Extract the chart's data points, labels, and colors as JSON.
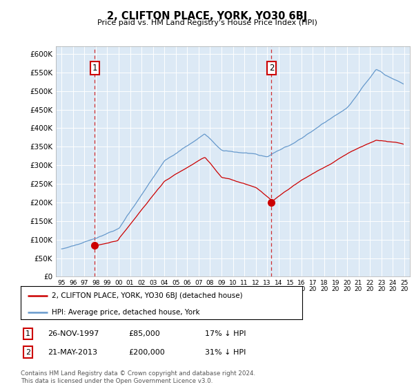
{
  "title": "2, CLIFTON PLACE, YORK, YO30 6BJ",
  "subtitle": "Price paid vs. HM Land Registry's House Price Index (HPI)",
  "ylim": [
    0,
    620000
  ],
  "xlim_start": 1994.5,
  "xlim_end": 2025.5,
  "purchase1_x": 1997.9,
  "purchase1_y": 85000,
  "purchase2_x": 2013.38,
  "purchase2_y": 200000,
  "line_red_color": "#cc0000",
  "line_blue_color": "#6699cc",
  "chart_bg_color": "#dce9f5",
  "dashed_color": "#cc0000",
  "legend_red_label": "2, CLIFTON PLACE, YORK, YO30 6BJ (detached house)",
  "legend_blue_label": "HPI: Average price, detached house, York",
  "footnote": "Contains HM Land Registry data © Crown copyright and database right 2024.\nThis data is licensed under the Open Government Licence v3.0.",
  "background_color": "#ffffff",
  "grid_color": "#aaaacc"
}
